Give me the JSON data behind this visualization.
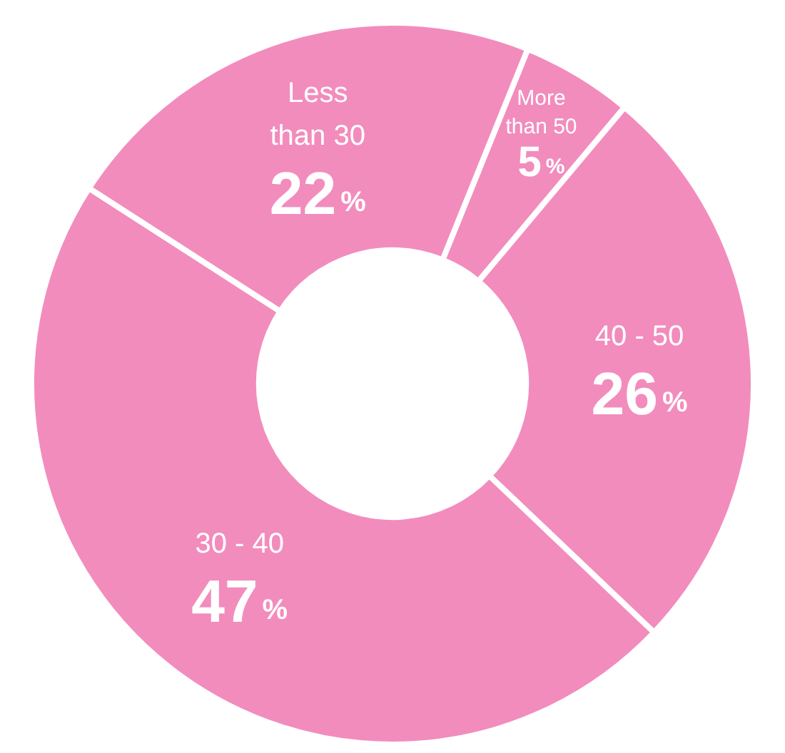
{
  "chart_data": {
    "type": "donut",
    "categories": [
      "More than 50",
      "40 - 50",
      "30 - 40",
      "Less than 30"
    ],
    "values": [
      5,
      26,
      47,
      22
    ],
    "colors": [
      "#f28cbd",
      "#f28cbd",
      "#f28cbd",
      "#f28cbd"
    ],
    "value_labels": [
      "5%",
      "26%",
      "47%",
      "22%"
    ],
    "legend": false
  }
}
